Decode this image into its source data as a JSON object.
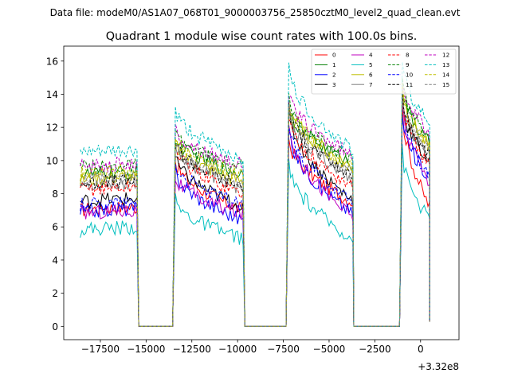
{
  "suptitle": "Data file: modeM0/AS1A07_068T01_9000003756_25850cztM0_level2_quad_clean.evt",
  "chart_data": {
    "type": "line",
    "title": "Quadrant 1 module wise count rates with 100.0s bins.",
    "xlabel": "",
    "ylabel": "",
    "x_offset_label": "+3.32e8",
    "xlim": [
      -19500,
      2100
    ],
    "ylim": [
      -0.8,
      16.9
    ],
    "x_ticks": [
      -17500,
      -15000,
      -12500,
      -10000,
      -7500,
      -5000,
      -2500,
      0
    ],
    "x_tick_labels": [
      "−17500",
      "−15000",
      "−12500",
      "−10000",
      "−7500",
      "−5000",
      "−2500",
      "0"
    ],
    "y_ticks": [
      0,
      2,
      4,
      6,
      8,
      10,
      12,
      14,
      16
    ],
    "y_tick_labels": [
      "0",
      "2",
      "4",
      "6",
      "8",
      "10",
      "12",
      "14",
      "16"
    ],
    "legend": {
      "position": "top-right",
      "columns": 4
    },
    "segments": [
      {
        "start": -18600,
        "end": -15500
      },
      {
        "start": -13400,
        "end": -9700
      },
      {
        "start": -7200,
        "end": -3700
      },
      {
        "start": -1000,
        "end": 500
      }
    ],
    "gaps": [
      {
        "start": -15300,
        "end": -13500
      },
      {
        "start": -9600,
        "end": -7300
      },
      {
        "start": -3600,
        "end": -1100
      }
    ],
    "series": [
      {
        "name": "0",
        "color": "#ff0000",
        "style": "solid",
        "levels": [
          7.0,
          10.0,
          7.0,
          11.3,
          7.5,
          13.3,
          7.2,
          13.5,
          11.1
        ]
      },
      {
        "name": "1",
        "color": "#008000",
        "style": "solid",
        "levels": [
          9.1,
          11.4,
          9.2,
          13.4,
          9.8,
          14.5,
          11.0,
          14.0,
          11.6
        ]
      },
      {
        "name": "2",
        "color": "#0000ff",
        "style": "solid",
        "levels": [
          6.9,
          9.4,
          6.4,
          11.8,
          6.8,
          12.6,
          9.0,
          13.0,
          10.4
        ]
      },
      {
        "name": "3",
        "color": "#000000",
        "style": "solid",
        "levels": [
          7.5,
          10.2,
          7.2,
          13.0,
          7.6,
          13.6,
          9.9,
          12.5,
          10.9
        ]
      },
      {
        "name": "4",
        "color": "#bf00bf",
        "style": "solid",
        "levels": [
          6.8,
          9.0,
          6.8,
          12.2,
          6.6,
          13.4,
          8.7,
          14.1,
          10.4
        ]
      },
      {
        "name": "5",
        "color": "#00bfbf",
        "style": "solid",
        "levels": [
          5.8,
          7.6,
          5.3,
          9.7,
          5.3,
          10.6,
          6.4,
          10.8,
          8.3
        ]
      },
      {
        "name": "6",
        "color": "#bfbf00",
        "style": "solid",
        "levels": [
          8.8,
          11.1,
          8.7,
          13.6,
          9.6,
          14.4,
          10.8,
          14.2,
          11.6
        ]
      },
      {
        "name": "7",
        "color": "#808080",
        "style": "solid",
        "levels": [
          8.5,
          11.0,
          8.3,
          13.0,
          8.9,
          13.8,
          10.1,
          13.6,
          11.0
        ]
      },
      {
        "name": "8",
        "color": "#ff0000",
        "style": "dashed",
        "levels": [
          8.2,
          10.8,
          8.0,
          12.6,
          8.4,
          13.8,
          9.6,
          13.9,
          11.2
        ]
      },
      {
        "name": "9",
        "color": "#008000",
        "style": "dashed",
        "levels": [
          9.5,
          11.6,
          9.6,
          13.7,
          10.1,
          14.8,
          11.3,
          14.5,
          11.7
        ]
      },
      {
        "name": "10",
        "color": "#0000ff",
        "style": "dashed",
        "levels": [
          7.3,
          9.8,
          7.3,
          12.2,
          7.4,
          13.1,
          9.0,
          13.3,
          10.6
        ]
      },
      {
        "name": "11",
        "color": "#000000",
        "style": "dashed",
        "levels": [
          8.6,
          11.2,
          8.4,
          13.2,
          9.0,
          14.0,
          10.2,
          13.6,
          11.0
        ]
      },
      {
        "name": "12",
        "color": "#bf00bf",
        "style": "dashed",
        "levels": [
          9.6,
          11.8,
          9.8,
          14.0,
          10.3,
          15.0,
          11.6,
          14.6,
          11.6
        ]
      },
      {
        "name": "13",
        "color": "#00bfbf",
        "style": "dashed",
        "levels": [
          10.4,
          13.1,
          10.1,
          15.6,
          10.6,
          16.0,
          12.2,
          15.8,
          11.6
        ]
      },
      {
        "name": "14",
        "color": "#bfbf00",
        "style": "dashed",
        "levels": [
          9.2,
          11.4,
          9.1,
          13.4,
          9.5,
          14.3,
          10.9,
          14.2,
          11.6
        ]
      },
      {
        "name": "15",
        "color": "#808080",
        "style": "dashed",
        "levels": [
          8.7,
          11.0,
          8.6,
          13.1,
          9.2,
          14.0,
          10.5,
          13.9,
          11.2
        ]
      }
    ]
  }
}
